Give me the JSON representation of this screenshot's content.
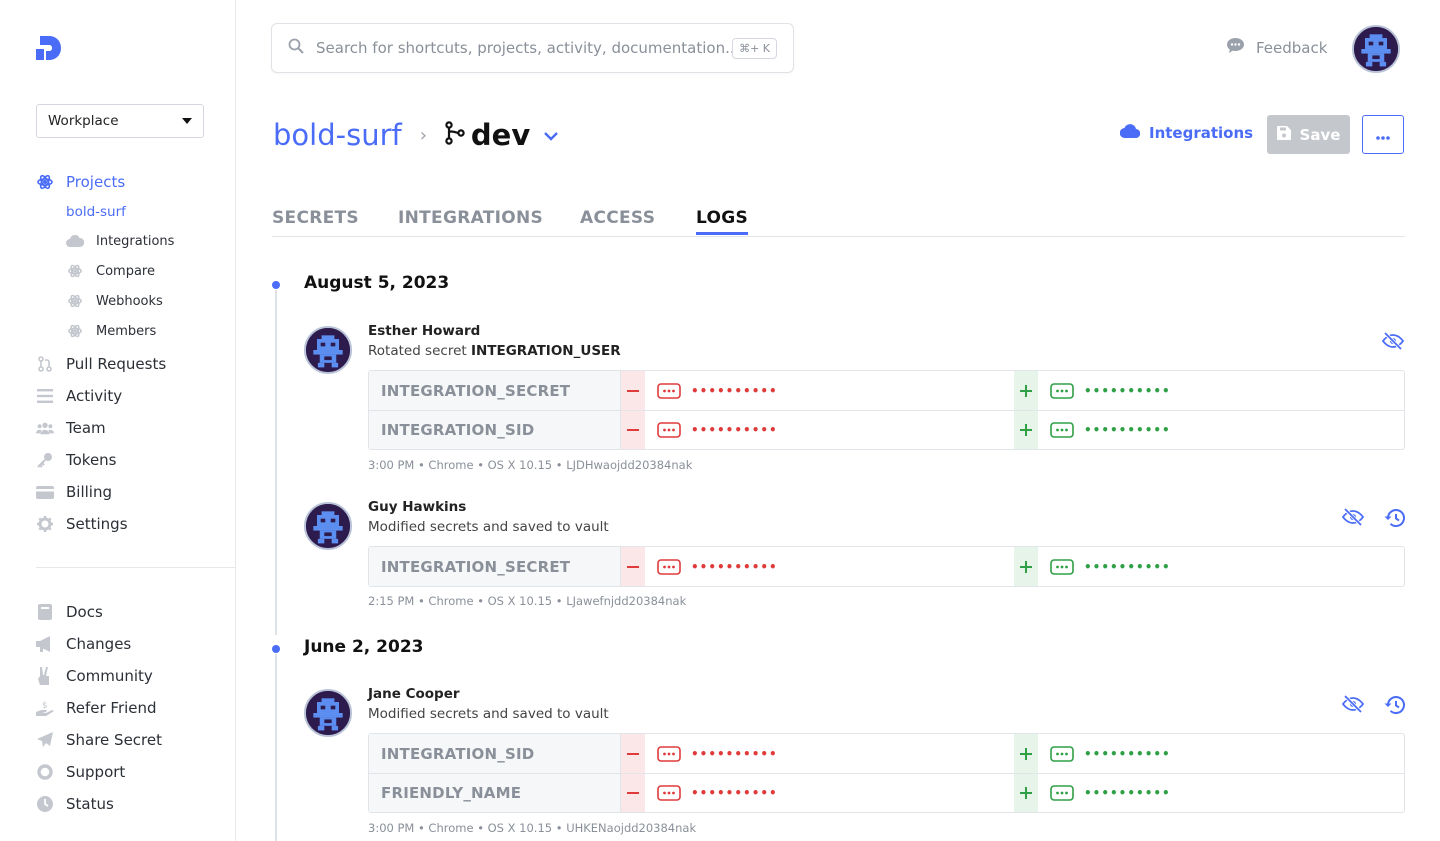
{
  "sidebar": {
    "workspace": "Workplace",
    "nav": {
      "projects": "Projects",
      "project_name": "bold-surf"
    },
    "sub": [
      "Integrations",
      "Compare",
      "Webhooks",
      "Members"
    ],
    "main": [
      "Pull Requests",
      "Activity",
      "Team",
      "Tokens",
      "Billing",
      "Settings"
    ],
    "footer": [
      "Docs",
      "Changes",
      "Community",
      "Refer Friend",
      "Share Secret",
      "Support",
      "Status"
    ]
  },
  "header": {
    "search_placeholder": "Search for shortcuts, projects, activity, documentation...",
    "shortcut": "⌘+ K",
    "feedback": "Feedback"
  },
  "breadcrumb": {
    "project": "bold-surf",
    "branch": "dev"
  },
  "actions": {
    "integrations": "Integrations",
    "save": "Save"
  },
  "tabs": [
    "SECRETS",
    "INTEGRATIONS",
    "ACCESS",
    "LOGS"
  ],
  "active_tab": "LOGS",
  "logs": [
    {
      "date": "August 5, 2023",
      "events": [
        {
          "name": "Esther Howard",
          "desc_prefix": "Rotated secret ",
          "desc_bold": "INTEGRATION_USER",
          "rows": [
            "INTEGRATION_SECRET",
            "INTEGRATION_SID"
          ],
          "meta": "3:00 PM • Chrome • OS X 10.15 • LJDHwaojdd20384nak"
        },
        {
          "name": "Guy Hawkins",
          "desc_prefix": "Modified secrets and saved to vault",
          "desc_bold": "",
          "rows": [
            "INTEGRATION_SECRET"
          ],
          "meta": "2:15 PM • Chrome • OS X 10.15 • LJawefnjdd20384nak"
        }
      ]
    },
    {
      "date": "June 2, 2023",
      "events": [
        {
          "name": "Jane Cooper",
          "desc_prefix": "Modified secrets and saved to vault",
          "desc_bold": "",
          "rows": [
            "INTEGRATION_SID",
            "FRIENDLY_NAME"
          ],
          "meta": "3:00 PM • Chrome • OS X 10.15 • UHKENaojdd20384nak"
        }
      ]
    }
  ],
  "masked_value": "••••••••••",
  "colors": {
    "accent": "#4a6cf7",
    "removed": "#e03b3b",
    "added": "#2fa046"
  }
}
